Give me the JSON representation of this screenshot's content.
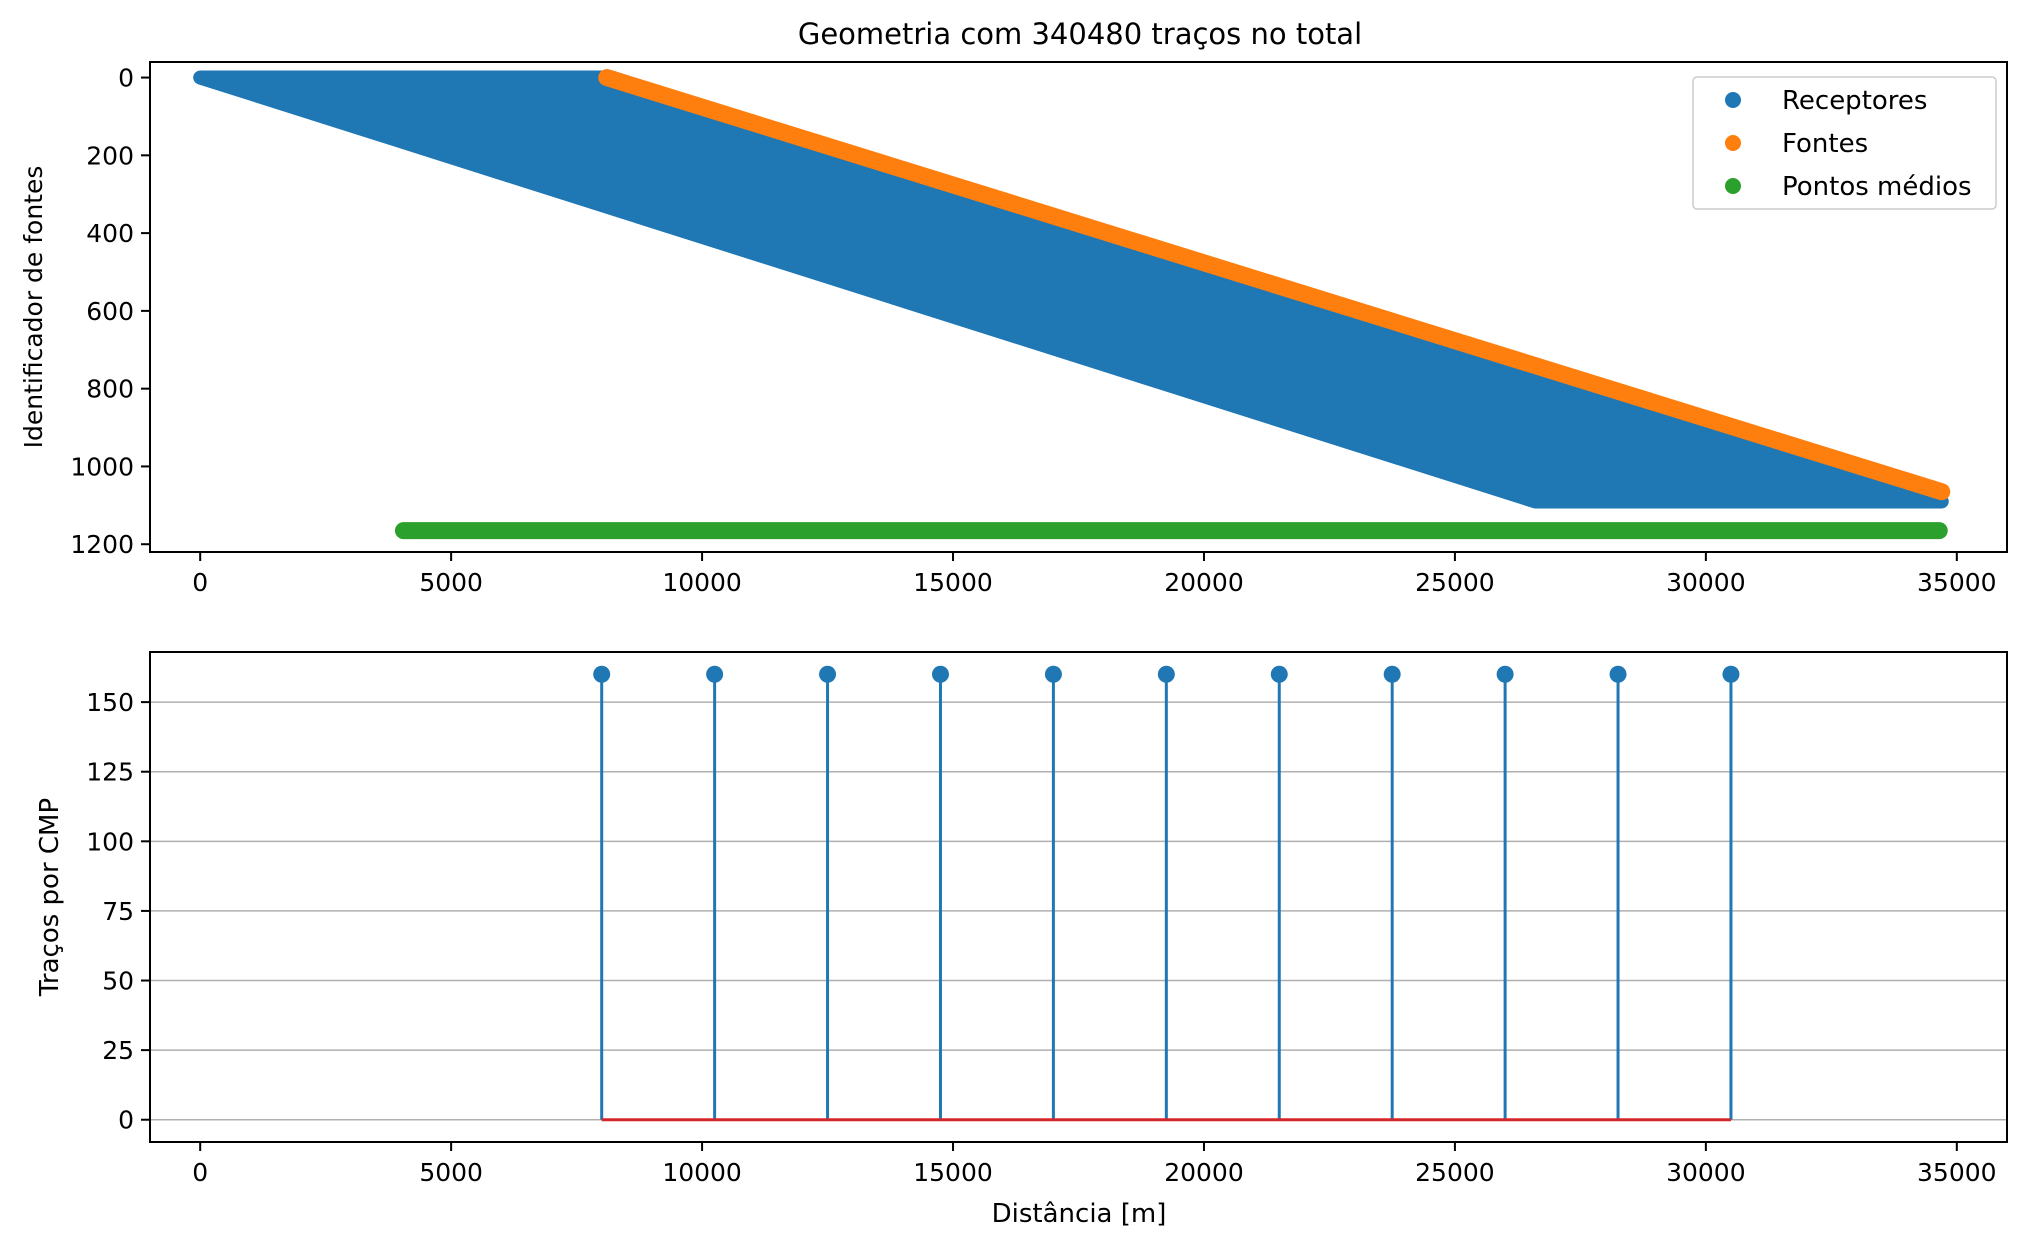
{
  "chart_data": [
    {
      "type": "scatter",
      "title": "Geometria com 340480 traços no total",
      "xlabel": "",
      "ylabel": "Identificador de fontes",
      "xlim": [
        -1000,
        36000
      ],
      "ylim": [
        1220,
        -40
      ],
      "y_inverted": true,
      "xticks": [
        0,
        5000,
        10000,
        15000,
        20000,
        25000,
        30000,
        35000
      ],
      "xtick_labels": [
        "0",
        "5000",
        "10000",
        "15000",
        "20000",
        "25000",
        "30000",
        "35000"
      ],
      "yticks": [
        0,
        200,
        400,
        600,
        800,
        1000,
        1200
      ],
      "ytick_labels": [
        "0",
        "200",
        "400",
        "600",
        "800",
        "1000",
        "1200"
      ],
      "grid": false,
      "legend": {
        "placement": "top-right",
        "entries": [
          "Receptores",
          "Fontes",
          "Pontos médios"
        ]
      },
      "series": [
        {
          "name": "Receptores",
          "color": "#1f77b4",
          "shape": "filled band",
          "band_corners": [
            [
              0,
              0
            ],
            [
              8200,
              0
            ],
            [
              34700,
              1090
            ],
            [
              26600,
              1090
            ]
          ]
        },
        {
          "name": "Fontes",
          "color": "#ff7f0e",
          "shape": "line of points",
          "start": [
            8100,
            0
          ],
          "end": [
            34700,
            1065
          ]
        },
        {
          "name": "Pontos médios",
          "color": "#2ca02c",
          "shape": "line of points",
          "start": [
            4050,
            1165
          ],
          "end": [
            34650,
            1165
          ]
        }
      ]
    },
    {
      "type": "stem",
      "title": "",
      "xlabel": "Distância [m]",
      "ylabel": "Traços por CMP",
      "xlim": [
        -1000,
        36000
      ],
      "ylim": [
        -8,
        168
      ],
      "xticks": [
        0,
        5000,
        10000,
        15000,
        20000,
        25000,
        30000,
        35000
      ],
      "xtick_labels": [
        "0",
        "5000",
        "10000",
        "15000",
        "20000",
        "25000",
        "30000",
        "35000"
      ],
      "yticks": [
        0,
        25,
        50,
        75,
        100,
        125,
        150
      ],
      "ytick_labels": [
        "0",
        "25",
        "50",
        "75",
        "100",
        "125",
        "150"
      ],
      "grid": "horizontal",
      "stem_color": "#1f77b4",
      "baseline_color": "#d62728",
      "x": [
        8000,
        10250,
        12500,
        14750,
        17000,
        19250,
        21500,
        23750,
        26000,
        28250,
        30500
      ],
      "values": [
        160,
        160,
        160,
        160,
        160,
        160,
        160,
        160,
        160,
        160,
        160
      ]
    }
  ]
}
